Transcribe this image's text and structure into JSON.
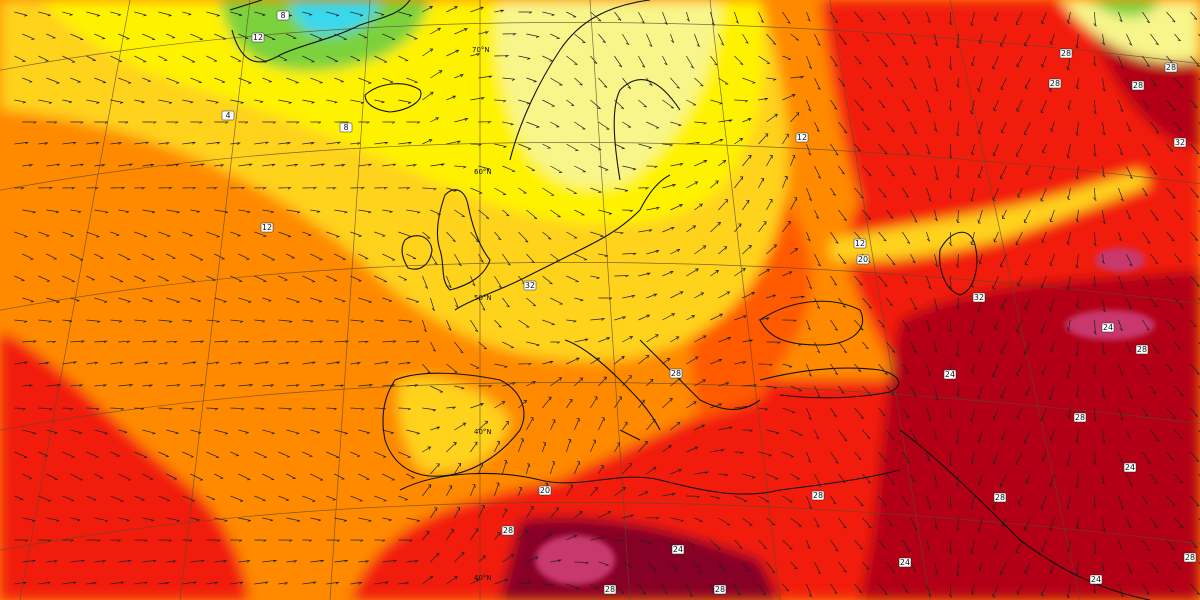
{
  "map": {
    "colors": {
      "cyan": "#38d8ee",
      "green": "#7bd23c",
      "light_green": "#c9ec5e",
      "pale_yellow": "#f8f58a",
      "yellow": "#fff200",
      "gold": "#ffd21a",
      "orange_light": "#ffae16",
      "orange": "#ff8a00",
      "orange_dark": "#ff5a00",
      "red": "#f21c0a",
      "dark_red": "#b30012",
      "maroon": "#870027",
      "magenta": "#c8376d"
    },
    "latitude_labels": [
      "70°N",
      "60°N",
      "50°N",
      "40°N",
      "40°N"
    ],
    "temperature_labels": [
      "8",
      "12",
      "4",
      "8",
      "12",
      "12",
      "12",
      "20",
      "32",
      "24",
      "28",
      "28",
      "28",
      "32",
      "24",
      "20",
      "28",
      "24",
      "28",
      "24",
      "28",
      "24",
      "28",
      "28",
      "32",
      "24",
      "28",
      "28",
      "28",
      "28",
      "28"
    ]
  }
}
